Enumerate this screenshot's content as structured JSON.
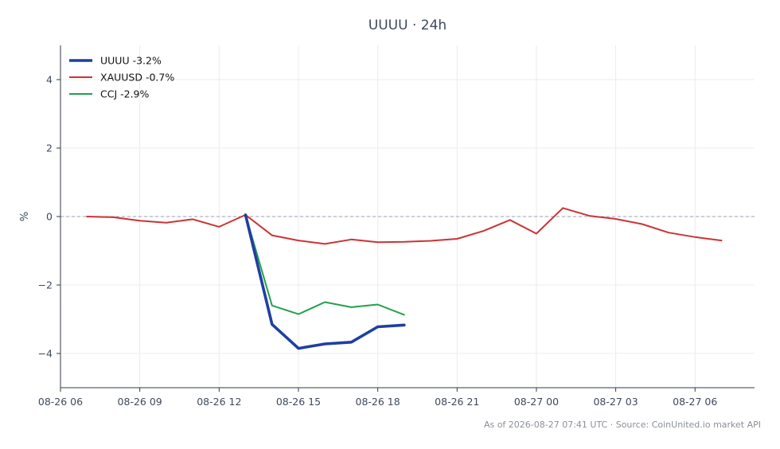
{
  "chart_data": {
    "type": "line",
    "title": "UUUU · 24h",
    "xlabel": "",
    "ylabel": "%",
    "ylim": [
      -5,
      5
    ],
    "xlim": [
      "08-26 06:00",
      "08-27 08:15"
    ],
    "yticks": [
      -4,
      -2,
      0,
      2,
      4
    ],
    "ytick_labels": [
      "−4",
      "−2",
      "0",
      "2",
      "4"
    ],
    "xticks": [
      "08-26 06:00",
      "08-26 09:00",
      "08-26 12:00",
      "08-26 15:00",
      "08-26 18:00",
      "08-26 21:00",
      "08-27 00:00",
      "08-27 03:00",
      "08-27 06:00"
    ],
    "xtick_labels": [
      "08-26 06",
      "08-26 09",
      "08-26 12",
      "08-26 15",
      "08-26 18",
      "08-26 21",
      "08-27 00",
      "08-27 03",
      "08-27 06"
    ],
    "grid": true,
    "zero_line": true,
    "legend_position": "top-left",
    "series": [
      {
        "name": "UUUU -3.2%",
        "color": "#1f3fa0",
        "emphasis": true,
        "x": [
          "08-26 13:00",
          "08-26 14:00",
          "08-26 15:00",
          "08-26 16:00",
          "08-26 17:00",
          "08-26 18:00",
          "08-26 19:00"
        ],
        "y": [
          0.05,
          -3.15,
          -3.85,
          -3.72,
          -3.67,
          -3.22,
          -3.17
        ]
      },
      {
        "name": "XAUUSD -0.7%",
        "color": "#cc3333",
        "emphasis": false,
        "x": [
          "08-26 07:00",
          "08-26 08:00",
          "08-26 09:00",
          "08-26 10:00",
          "08-26 11:00",
          "08-26 12:00",
          "08-26 13:00",
          "08-26 14:00",
          "08-26 15:00",
          "08-26 16:00",
          "08-26 17:00",
          "08-26 18:00",
          "08-26 19:00",
          "08-26 20:00",
          "08-26 21:00",
          "08-26 22:00",
          "08-26 23:00",
          "08-27 00:00",
          "08-27 01:00",
          "08-27 02:00",
          "08-27 03:00",
          "08-27 04:00",
          "08-27 05:00",
          "08-27 06:00",
          "08-27 07:00"
        ],
        "y": [
          0.0,
          -0.02,
          -0.12,
          -0.18,
          -0.08,
          -0.3,
          0.05,
          -0.55,
          -0.7,
          -0.8,
          -0.67,
          -0.75,
          -0.74,
          -0.71,
          -0.65,
          -0.42,
          -0.1,
          -0.5,
          0.25,
          0.02,
          -0.07,
          -0.22,
          -0.47,
          -0.6,
          -0.7
        ]
      },
      {
        "name": "CCJ -2.9%",
        "color": "#22a14a",
        "emphasis": false,
        "x": [
          "08-26 13:00",
          "08-26 14:00",
          "08-26 15:00",
          "08-26 16:00",
          "08-26 17:00",
          "08-26 18:00",
          "08-26 19:00"
        ],
        "y": [
          0.05,
          -2.6,
          -2.85,
          -2.5,
          -2.65,
          -2.57,
          -2.87
        ]
      }
    ],
    "footer": "As of 2026-08-27 07:41 UTC · Source: CoinUnited.io market API"
  }
}
